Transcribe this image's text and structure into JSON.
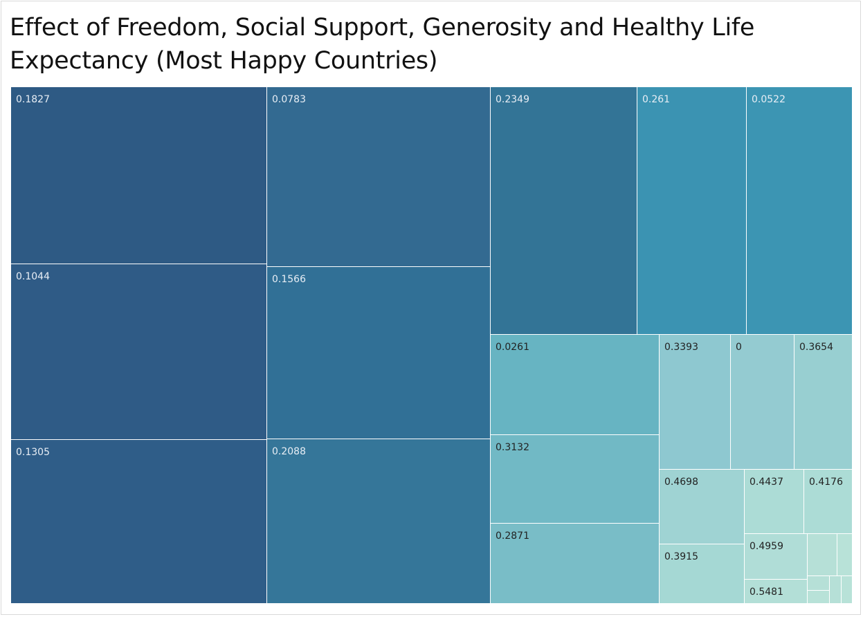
{
  "title": "Effect of Freedom, Social Support, Generosity and Healthy Life Expectancy (Most Happy Countries)",
  "chart_data": {
    "type": "treemap",
    "title": "Effect of Freedom, Social Support, Generosity and Healthy Life Expectancy (Most Happy Countries)",
    "color_scale": [
      "#2e5a86",
      "#3a93b3",
      "#b6e0d7"
    ],
    "cells": [
      {
        "label": "0.1827",
        "value": 0.1827,
        "color": "#2e5a84"
      },
      {
        "label": "0.1044",
        "value": 0.1044,
        "color": "#2f5b86"
      },
      {
        "label": "0.1305",
        "value": 0.1305,
        "color": "#2f5d88"
      },
      {
        "label": "0.0783",
        "value": 0.0783,
        "color": "#336a91"
      },
      {
        "label": "0.1566",
        "value": 0.1566,
        "color": "#317096"
      },
      {
        "label": "0.2088",
        "value": 0.2088,
        "color": "#357699"
      },
      {
        "label": "0.2349",
        "value": 0.2349,
        "color": "#337496"
      },
      {
        "label": "0.261",
        "value": 0.261,
        "color": "#3b93b2"
      },
      {
        "label": "0.0522",
        "value": 0.0522,
        "color": "#3c95b3"
      },
      {
        "label": "0.0261",
        "value": 0.0261,
        "color": "#67b4c2"
      },
      {
        "label": "0.3132",
        "value": 0.3132,
        "color": "#71b9c5"
      },
      {
        "label": "0.2871",
        "value": 0.2871,
        "color": "#79bdc7"
      },
      {
        "label": "0.3393",
        "value": 0.3393,
        "color": "#8ec8d0"
      },
      {
        "label": "0",
        "value": 0,
        "color": "#94cbd1"
      },
      {
        "label": "0.3654",
        "value": 0.3654,
        "color": "#98cfd1"
      },
      {
        "label": "0.4698",
        "value": 0.4698,
        "color": "#9fd3d3"
      },
      {
        "label": "0.4437",
        "value": 0.4437,
        "color": "#acdcd6"
      },
      {
        "label": "0.4176",
        "value": 0.4176,
        "color": "#acdcd6"
      },
      {
        "label": "0.3915",
        "value": 0.3915,
        "color": "#a5d8d4"
      },
      {
        "label": "0.4959",
        "value": 0.4959,
        "color": "#b0ddd7"
      },
      {
        "label": "0.5481",
        "value": 0.5481,
        "color": "#b3dfd7"
      },
      {
        "label": "",
        "color": "#b6e0d7"
      },
      {
        "label": "",
        "color": "#b8e2d8"
      },
      {
        "label": "",
        "color": "#b6e0d7"
      },
      {
        "label": "",
        "color": "#b8e2d8"
      },
      {
        "label": "",
        "color": "#b6e0d7"
      },
      {
        "label": "",
        "color": "#b8e2d8"
      }
    ]
  }
}
